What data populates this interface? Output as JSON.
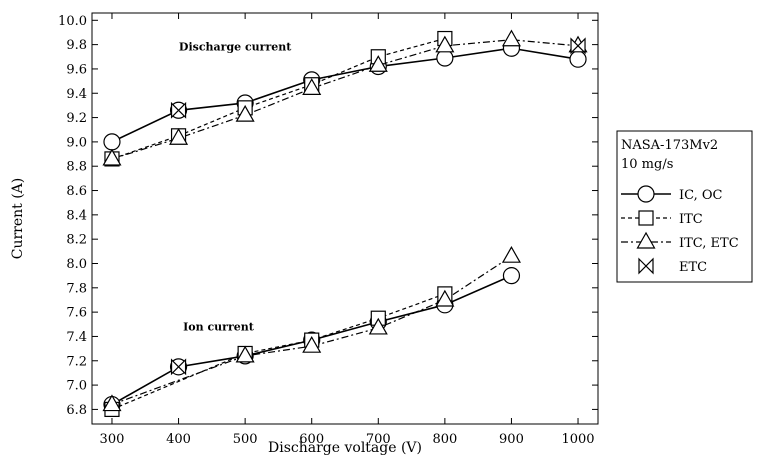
{
  "chart_data": {
    "type": "line",
    "xlabel": "Discharge voltage (V)",
    "ylabel": "Current (A)",
    "xlim": [
      270,
      1030
    ],
    "ylim": [
      6.68,
      10.06
    ],
    "xticks": [
      300,
      400,
      500,
      600,
      700,
      800,
      900,
      1000
    ],
    "yticks": [
      6.8,
      7.0,
      7.2,
      7.4,
      7.6,
      7.8,
      8.0,
      8.2,
      8.4,
      8.6,
      8.8,
      9.0,
      9.2,
      9.4,
      9.6,
      9.8,
      10.0
    ],
    "grid": false,
    "annotations": [
      {
        "text": "Discharge current",
        "x": 485,
        "y": 9.75
      },
      {
        "text": "Ion current",
        "x": 460,
        "y": 7.45
      }
    ],
    "legend": {
      "placement": "right",
      "title_lines": [
        "NASA-173Mv2",
        "10 mg/s"
      ],
      "entries": [
        "IC, OC",
        "ITC",
        "ITC, ETC",
        "ETC"
      ]
    },
    "series": [
      {
        "name": "IC, OC",
        "group": "discharge",
        "marker": "circle",
        "dash": "solid",
        "x": [
          300,
          400,
          500,
          600,
          700,
          800,
          900,
          1000
        ],
        "y": [
          9.0,
          9.26,
          9.32,
          9.51,
          9.62,
          9.69,
          9.77,
          9.68
        ]
      },
      {
        "name": "ITC",
        "group": "discharge",
        "marker": "square",
        "dash": "dashed",
        "x": [
          300,
          400,
          500,
          600,
          700,
          800
        ],
        "y": [
          8.86,
          9.05,
          9.28,
          9.47,
          9.7,
          9.85
        ]
      },
      {
        "name": "ITC, ETC",
        "group": "discharge",
        "marker": "triangle",
        "dash": "dashdot",
        "x": [
          300,
          400,
          500,
          600,
          700,
          800,
          900,
          1000
        ],
        "y": [
          8.86,
          9.03,
          9.22,
          9.44,
          9.63,
          9.79,
          9.84,
          9.79
        ]
      },
      {
        "name": "ETC",
        "group": "discharge",
        "marker": "bowtie",
        "dash": "none",
        "x": [
          400,
          1000
        ],
        "y": [
          9.26,
          9.79
        ]
      },
      {
        "name": "IC, OC",
        "group": "ion",
        "marker": "circle",
        "dash": "solid",
        "x": [
          300,
          400,
          500,
          600,
          700,
          800,
          900
        ],
        "y": [
          6.84,
          7.15,
          7.24,
          7.37,
          7.52,
          7.66,
          7.9
        ]
      },
      {
        "name": "ITC",
        "group": "ion",
        "marker": "square",
        "dash": "dashed",
        "x": [
          300,
          500,
          600,
          700,
          800
        ],
        "y": [
          6.8,
          7.26,
          7.37,
          7.55,
          7.75
        ]
      },
      {
        "name": "ITC, ETC",
        "group": "ion",
        "marker": "triangle",
        "dash": "dashdot",
        "x": [
          300,
          500,
          600,
          700,
          800,
          900
        ],
        "y": [
          6.84,
          7.24,
          7.32,
          7.47,
          7.7,
          8.06
        ]
      },
      {
        "name": "ETC",
        "group": "ion",
        "marker": "bowtie",
        "dash": "none",
        "x": [
          400
        ],
        "y": [
          7.15
        ]
      }
    ]
  }
}
